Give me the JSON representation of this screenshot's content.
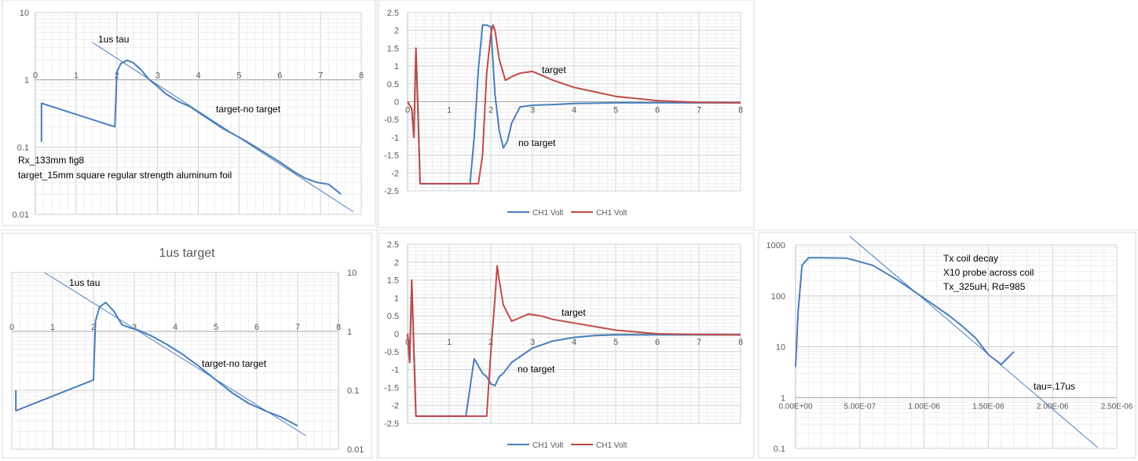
{
  "colors": {
    "blue": "#4a7ebb",
    "red": "#be4b48",
    "grid": "#d9d9d9",
    "axis": "#595959",
    "text": "#000000"
  },
  "chart_data": [
    {
      "id": "p1",
      "type": "line",
      "title": "",
      "scale": "log",
      "x_ticks": [
        "0",
        "1",
        "2",
        "3",
        "4",
        "5",
        "6",
        "7",
        "8"
      ],
      "y_ticks": [
        "10",
        "1",
        "0.1",
        "0.01"
      ],
      "xlim": [
        0,
        8
      ],
      "ylim": [
        0.01,
        10
      ],
      "series": [
        {
          "name": "target-no target",
          "color": "blue",
          "x": [
            0.15,
            0.15,
            1.95,
            2.0,
            2.1,
            2.25,
            2.4,
            2.6,
            2.8,
            3.0,
            3.2,
            3.5,
            3.8,
            4.0,
            4.3,
            4.6,
            5.0,
            5.3,
            5.6,
            6.0,
            6.3,
            6.6,
            6.9,
            7.2,
            7.5
          ],
          "y": [
            0.12,
            0.45,
            0.2,
            1.3,
            1.75,
            1.95,
            1.8,
            1.4,
            1.0,
            0.8,
            0.62,
            0.48,
            0.4,
            0.33,
            0.25,
            0.19,
            0.14,
            0.11,
            0.085,
            0.06,
            0.045,
            0.035,
            0.03,
            0.028,
            0.02
          ]
        },
        {
          "name": "1us tau",
          "color": "blue",
          "x": [
            1.4,
            7.8
          ],
          "y": [
            3.6,
            0.011
          ]
        }
      ],
      "annotations": [
        "1us tau",
        "target-no target",
        "Rx_133mm fig8",
        "target_15mm square regular strength aluminum foil"
      ]
    },
    {
      "id": "p2",
      "type": "line",
      "title": "",
      "x_ticks": [
        "0",
        "1",
        "2",
        "3",
        "4",
        "5",
        "6",
        "7",
        "8"
      ],
      "y_ticks": [
        "2.5",
        "2",
        "1.5",
        "1",
        "0.5",
        "0",
        "-0.5",
        "-1",
        "-1.5",
        "-2",
        "-2.5"
      ],
      "xlim": [
        0,
        8
      ],
      "ylim": [
        -2.5,
        2.5
      ],
      "legend": [
        "CH1 Volt",
        "CH1 Volt"
      ],
      "series": [
        {
          "name": "CH1 Volt",
          "color": "blue",
          "x": [
            0.0,
            0.1,
            0.15,
            0.2,
            0.25,
            0.3,
            1.4,
            1.5,
            1.6,
            1.7,
            1.8,
            1.9,
            2.0,
            2.1,
            2.2,
            2.3,
            2.4,
            2.5,
            2.7,
            3.0,
            3.5,
            4.0,
            5.0,
            6.0,
            7.0,
            8.0
          ],
          "y": [
            0.0,
            -0.2,
            -1.0,
            1.5,
            -0.3,
            -2.3,
            -2.3,
            -2.3,
            -1.0,
            0.9,
            2.15,
            2.15,
            2.1,
            0.2,
            -0.8,
            -1.3,
            -1.1,
            -0.6,
            -0.15,
            -0.1,
            -0.08,
            -0.05,
            -0.03,
            -0.03,
            -0.03,
            -0.03
          ]
        },
        {
          "name": "CH1 Volt",
          "color": "red",
          "x": [
            0.0,
            0.1,
            0.15,
            0.2,
            0.25,
            0.3,
            1.6,
            1.7,
            1.8,
            1.9,
            2.0,
            2.05,
            2.1,
            2.2,
            2.35,
            2.5,
            2.7,
            3.0,
            3.5,
            4.0,
            5.0,
            6.0,
            7.0,
            8.0
          ],
          "y": [
            0.0,
            -0.2,
            -1.0,
            1.5,
            -0.3,
            -2.3,
            -2.3,
            -2.3,
            -1.5,
            0.8,
            1.9,
            2.15,
            2.0,
            1.2,
            0.6,
            0.7,
            0.8,
            0.85,
            0.6,
            0.4,
            0.15,
            0.03,
            -0.02,
            -0.03
          ]
        }
      ],
      "annotations": [
        "target",
        "no target"
      ]
    },
    {
      "id": "p3",
      "type": "line",
      "title": "1us target",
      "scale": "log",
      "x_ticks": [
        "0",
        "1",
        "2",
        "3",
        "4",
        "5",
        "6",
        "7",
        "8"
      ],
      "y_ticks": [
        "10",
        "1",
        "0.1",
        "0.01"
      ],
      "xlim": [
        0,
        8
      ],
      "ylim": [
        0.01,
        10
      ],
      "series": [
        {
          "name": "target-no target",
          "color": "blue",
          "x": [
            0.1,
            0.1,
            2.0,
            2.05,
            2.15,
            2.3,
            2.5,
            2.7,
            2.9,
            3.1,
            3.4,
            3.8,
            4.2,
            4.6,
            5.0,
            5.4,
            5.8,
            6.2,
            6.6,
            7.0
          ],
          "y": [
            0.1,
            0.045,
            0.15,
            1.5,
            2.6,
            3.1,
            2.2,
            1.3,
            1.15,
            1.05,
            0.85,
            0.6,
            0.4,
            0.25,
            0.15,
            0.09,
            0.06,
            0.045,
            0.035,
            0.025
          ]
        },
        {
          "name": "1us tau",
          "color": "blue",
          "x": [
            0.8,
            7.2
          ],
          "y": [
            10.0,
            0.017
          ]
        }
      ],
      "annotations": [
        "1us tau",
        "target-no target"
      ]
    },
    {
      "id": "p4",
      "type": "line",
      "title": "",
      "x_ticks": [
        "0",
        "1",
        "2",
        "3",
        "4",
        "5",
        "6",
        "7",
        "8"
      ],
      "y_ticks": [
        "2.5",
        "2",
        "1.5",
        "1",
        "0.5",
        "0",
        "-0.5",
        "-1",
        "-1.5",
        "-2",
        "-2.5"
      ],
      "xlim": [
        0,
        8
      ],
      "ylim": [
        -2.5,
        2.5
      ],
      "legend": [
        "CH1 Volt",
        "CH1 Volt"
      ],
      "series": [
        {
          "name": "CH1 Volt",
          "color": "blue",
          "x": [
            0.0,
            0.05,
            0.1,
            0.15,
            0.2,
            0.25,
            0.3,
            1.3,
            1.4,
            1.5,
            1.6,
            1.7,
            1.8,
            1.9,
            2.0,
            2.1,
            2.2,
            2.3,
            2.5,
            3.0,
            3.5,
            4.0,
            4.5,
            5.0,
            6.0,
            7.0,
            8.0
          ],
          "y": [
            0.0,
            -0.8,
            1.5,
            -0.5,
            -2.3,
            -2.3,
            -2.3,
            -2.3,
            -2.3,
            -1.5,
            -0.7,
            -0.9,
            -1.1,
            -1.2,
            -1.4,
            -1.45,
            -1.2,
            -1.1,
            -0.8,
            -0.4,
            -0.2,
            -0.1,
            -0.05,
            -0.03,
            -0.03,
            -0.03,
            -0.03
          ]
        },
        {
          "name": "CH1 Volt",
          "color": "red",
          "x": [
            0.0,
            0.05,
            0.1,
            0.15,
            0.2,
            0.25,
            0.3,
            1.8,
            1.9,
            2.0,
            2.1,
            2.15,
            2.2,
            2.3,
            2.5,
            2.7,
            2.9,
            3.2,
            3.5,
            4.0,
            5.0,
            6.0,
            7.0,
            8.0
          ],
          "y": [
            0.0,
            -0.8,
            1.5,
            -0.5,
            -2.3,
            -2.3,
            -2.3,
            -2.3,
            -2.3,
            -0.5,
            1.0,
            1.9,
            1.5,
            0.8,
            0.35,
            0.45,
            0.55,
            0.5,
            0.4,
            0.3,
            0.1,
            0.0,
            -0.02,
            -0.03
          ]
        }
      ],
      "annotations": [
        "target",
        "no target"
      ]
    },
    {
      "id": "p5",
      "type": "line",
      "title": "",
      "scale": "log",
      "x_ticks": [
        "0.00E+00",
        "5.00E-07",
        "1.00E-06",
        "1.50E-06",
        "2.00E-06",
        "2.50E-06"
      ],
      "y_ticks": [
        "1000",
        "100",
        "10",
        "1",
        "0.1"
      ],
      "xlim": [
        0,
        2.5e-06
      ],
      "ylim": [
        0.1,
        1000
      ],
      "series": [
        {
          "name": "Tx coil decay",
          "color": "blue",
          "x": [
            0.0,
            2e-08,
            5e-08,
            1e-07,
            2e-07,
            4e-07,
            6e-07,
            8e-07,
            1e-06,
            1.2e-06,
            1.3e-06,
            1.4e-06,
            1.5e-06,
            1.6e-06,
            1.7e-06
          ],
          "y": [
            4,
            50,
            400,
            560,
            560,
            550,
            400,
            200,
            90,
            40,
            25,
            15,
            7,
            4.5,
            8
          ]
        },
        {
          "name": "tau=.17us",
          "color": "blue",
          "x": [
            4.2e-07,
            2.35e-06
          ],
          "y": [
            1500,
            0.105
          ]
        }
      ],
      "annotations": [
        "Tx coil decay",
        "X10 probe across coil",
        "Tx_325uH, Rd=985",
        "tau=.17us"
      ]
    }
  ]
}
